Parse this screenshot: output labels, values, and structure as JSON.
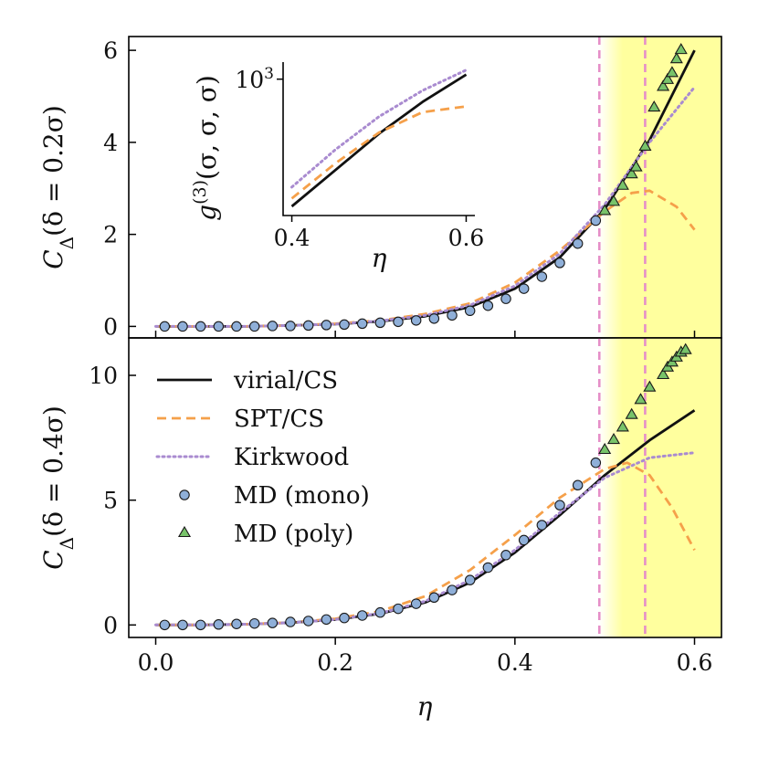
{
  "chart_data": [
    {
      "type": "line",
      "panel": "top",
      "ylabel": "C_Δ(δ = 0.2σ)",
      "ylabel_parts": {
        "base": "C",
        "sub": "Δ",
        "rest": "(δ = 0.2σ)"
      },
      "xlim": [
        -0.03,
        0.63
      ],
      "ylim": [
        -0.25,
        6.3
      ],
      "y_ticks": [
        0,
        2,
        4,
        6
      ],
      "y_tick_labels": [
        "0",
        "2",
        "4",
        "6"
      ],
      "x_ticks": [
        0.0,
        0.2,
        0.4,
        0.6
      ],
      "shaded_region": {
        "from": 0.494,
        "to": 0.63,
        "color": "#ffff9e",
        "fade_to": 0.52
      },
      "vlines": [
        0.494,
        0.545
      ],
      "series": [
        {
          "name": "virial/CS",
          "style": "solid",
          "color": "#111111",
          "x": [
            0.0,
            0.05,
            0.1,
            0.15,
            0.2,
            0.25,
            0.3,
            0.35,
            0.4,
            0.45,
            0.5,
            0.55,
            0.6
          ],
          "y": [
            0.0,
            0.0,
            0.0,
            0.02,
            0.05,
            0.11,
            0.22,
            0.42,
            0.82,
            1.5,
            2.55,
            4.05,
            6.0
          ]
        },
        {
          "name": "SPT/CS",
          "style": "dashed",
          "color": "#f5a04a",
          "x": [
            0.0,
            0.05,
            0.1,
            0.15,
            0.2,
            0.25,
            0.3,
            0.35,
            0.4,
            0.45,
            0.5,
            0.53,
            0.55,
            0.58,
            0.6
          ],
          "y": [
            0.0,
            0.0,
            0.0,
            0.02,
            0.06,
            0.13,
            0.27,
            0.5,
            0.95,
            1.65,
            2.5,
            2.9,
            2.95,
            2.6,
            2.1
          ]
        },
        {
          "name": "Kirkwood",
          "style": "dotted",
          "color": "#a98bd0",
          "x": [
            0.0,
            0.05,
            0.1,
            0.15,
            0.2,
            0.25,
            0.3,
            0.35,
            0.4,
            0.45,
            0.5,
            0.55,
            0.6
          ],
          "y": [
            0.0,
            0.0,
            0.0,
            0.02,
            0.05,
            0.12,
            0.24,
            0.46,
            0.88,
            1.58,
            2.65,
            4.0,
            5.2
          ]
        },
        {
          "name": "MD (mono)",
          "style": "marker-circle",
          "color": "#8fafd8",
          "x": [
            0.01,
            0.03,
            0.05,
            0.07,
            0.09,
            0.11,
            0.13,
            0.15,
            0.17,
            0.19,
            0.21,
            0.23,
            0.25,
            0.27,
            0.29,
            0.31,
            0.33,
            0.35,
            0.37,
            0.39,
            0.41,
            0.43,
            0.45,
            0.47,
            0.49
          ],
          "y": [
            0.0,
            0.0,
            0.0,
            0.0,
            0.0,
            0.0,
            0.01,
            0.01,
            0.02,
            0.03,
            0.04,
            0.06,
            0.08,
            0.1,
            0.13,
            0.17,
            0.24,
            0.34,
            0.45,
            0.6,
            0.82,
            1.08,
            1.38,
            1.8,
            2.3
          ]
        },
        {
          "name": "MD (poly)",
          "style": "marker-triangle",
          "color": "#78c36a",
          "x": [
            0.5,
            0.51,
            0.52,
            0.53,
            0.535,
            0.545,
            0.555,
            0.565,
            0.57,
            0.575,
            0.58,
            0.585
          ],
          "y": [
            2.5,
            2.7,
            3.05,
            3.3,
            3.45,
            3.9,
            4.75,
            5.2,
            5.35,
            5.5,
            5.8,
            6.0
          ]
        }
      ]
    },
    {
      "type": "line",
      "panel": "bottom",
      "xlabel": "η",
      "ylabel": "C_Δ(δ = 0.4σ)",
      "ylabel_parts": {
        "base": "C",
        "sub": "Δ",
        "rest": "(δ = 0.4σ)"
      },
      "xlim": [
        -0.03,
        0.63
      ],
      "ylim": [
        -0.5,
        11.5
      ],
      "y_ticks": [
        0,
        5,
        10
      ],
      "y_tick_labels": [
        "0",
        "5",
        "10"
      ],
      "x_ticks": [
        0.0,
        0.2,
        0.4,
        0.6
      ],
      "x_tick_labels": [
        "0.0",
        "0.2",
        "0.4",
        "0.6"
      ],
      "legend": {
        "position": "upper-left",
        "entries": [
          "virial/CS",
          "SPT/CS",
          "Kirkwood",
          "MD (mono)",
          "MD (poly)"
        ]
      },
      "shaded_region": {
        "from": 0.494,
        "to": 0.63,
        "color": "#ffff9e",
        "fade_to": 0.52
      },
      "vlines": [
        0.494,
        0.545
      ],
      "series": [
        {
          "name": "virial/CS",
          "style": "solid",
          "color": "#111111",
          "x": [
            0.0,
            0.05,
            0.1,
            0.15,
            0.2,
            0.25,
            0.3,
            0.35,
            0.4,
            0.45,
            0.5,
            0.55,
            0.6
          ],
          "y": [
            0.0,
            0.0,
            0.03,
            0.09,
            0.22,
            0.45,
            0.9,
            1.7,
            2.9,
            4.4,
            6.0,
            7.4,
            8.6
          ]
        },
        {
          "name": "SPT/CS",
          "style": "dashed",
          "color": "#f5a04a",
          "x": [
            0.0,
            0.05,
            0.1,
            0.15,
            0.2,
            0.25,
            0.3,
            0.35,
            0.4,
            0.45,
            0.5,
            0.525,
            0.55,
            0.575,
            0.6
          ],
          "y": [
            0.0,
            0.0,
            0.03,
            0.1,
            0.25,
            0.55,
            1.15,
            2.2,
            3.6,
            5.1,
            6.25,
            6.5,
            6.0,
            4.7,
            3.0
          ]
        },
        {
          "name": "Kirkwood",
          "style": "dotted",
          "color": "#a98bd0",
          "x": [
            0.0,
            0.05,
            0.1,
            0.15,
            0.2,
            0.25,
            0.3,
            0.35,
            0.4,
            0.45,
            0.5,
            0.55,
            0.6
          ],
          "y": [
            0.0,
            0.0,
            0.03,
            0.09,
            0.22,
            0.47,
            0.95,
            1.8,
            3.0,
            4.5,
            5.9,
            6.7,
            6.9
          ]
        },
        {
          "name": "MD (mono)",
          "style": "marker-circle",
          "color": "#8fafd8",
          "x": [
            0.01,
            0.03,
            0.05,
            0.07,
            0.09,
            0.11,
            0.13,
            0.15,
            0.17,
            0.19,
            0.21,
            0.23,
            0.25,
            0.27,
            0.29,
            0.31,
            0.33,
            0.35,
            0.37,
            0.39,
            0.41,
            0.43,
            0.45,
            0.47,
            0.49
          ],
          "y": [
            0.0,
            0.0,
            0.0,
            0.02,
            0.04,
            0.06,
            0.08,
            0.12,
            0.16,
            0.22,
            0.28,
            0.38,
            0.5,
            0.65,
            0.85,
            1.1,
            1.4,
            1.8,
            2.3,
            2.8,
            3.4,
            4.0,
            4.8,
            5.6,
            6.5
          ]
        },
        {
          "name": "MD (poly)",
          "style": "marker-triangle",
          "color": "#78c36a",
          "x": [
            0.5,
            0.51,
            0.52,
            0.53,
            0.54,
            0.55,
            0.565,
            0.57,
            0.575,
            0.58,
            0.585,
            0.59
          ],
          "y": [
            7.0,
            7.4,
            7.9,
            8.4,
            9.0,
            9.5,
            10.0,
            10.3,
            10.5,
            10.7,
            10.9,
            11.0
          ]
        }
      ]
    },
    {
      "type": "line",
      "panel": "inset",
      "xlabel": "η",
      "ylabel": "g^(3)(σ,σ,σ)",
      "ylabel_parts": {
        "base": "g",
        "sup": "(3)",
        "rest": "(σ, σ, σ)"
      },
      "y_scale": "log",
      "xlim": [
        0.39,
        0.61
      ],
      "ylim_log10": [
        1.8,
        3.15
      ],
      "y_tick_labels": [
        {
          "base": "10",
          "exp": "3"
        }
      ],
      "x_ticks": [
        0.4,
        0.6
      ],
      "x_tick_labels": [
        "0.4",
        "0.6"
      ],
      "series": [
        {
          "name": "virial/CS",
          "style": "solid",
          "color": "#111111",
          "x": [
            0.4,
            0.45,
            0.5,
            0.55,
            0.6
          ],
          "log10_y": [
            1.88,
            2.2,
            2.52,
            2.8,
            3.04
          ]
        },
        {
          "name": "SPT/CS",
          "style": "dashed",
          "color": "#f5a04a",
          "x": [
            0.4,
            0.45,
            0.5,
            0.55,
            0.6
          ],
          "log10_y": [
            1.95,
            2.26,
            2.53,
            2.71,
            2.76
          ]
        },
        {
          "name": "Kirkwood",
          "style": "dotted",
          "color": "#a98bd0",
          "x": [
            0.4,
            0.45,
            0.5,
            0.55,
            0.6
          ],
          "log10_y": [
            2.05,
            2.38,
            2.67,
            2.9,
            3.08
          ]
        }
      ]
    }
  ]
}
